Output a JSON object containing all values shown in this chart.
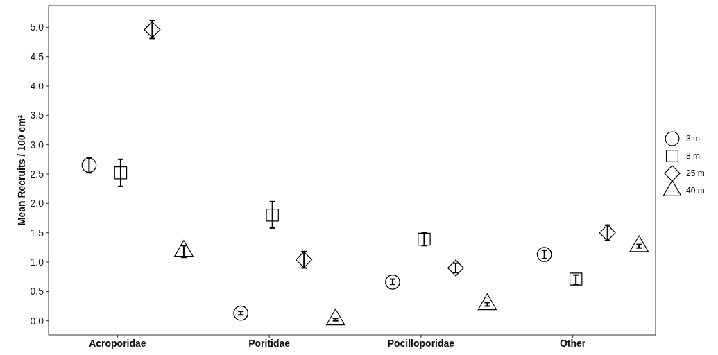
{
  "chart_data": {
    "type": "scatter",
    "ylabel": "Mean Recruits / 100 cm²",
    "categories": [
      "Acroporidae",
      "Poritidae",
      "Pocilloporidae",
      "Other"
    ],
    "ylim": [
      -0.24,
      5.37
    ],
    "yticks": [
      {
        "value": 0,
        "label": "0.0"
      },
      0.5,
      {
        "value": 1,
        "label": "1.0"
      },
      1.5,
      {
        "value": 2,
        "label": "2.0"
      },
      2.5,
      {
        "value": 3,
        "label": "3.0"
      },
      3.5,
      {
        "value": 4,
        "label": "4.0"
      },
      4.5,
      {
        "value": 5,
        "label": "5.0"
      }
    ],
    "grid": false,
    "legend": "right",
    "series": [
      {
        "name": "3 m",
        "color": "#000000",
        "marker": "circle",
        "values": [
          2.65,
          0.13,
          0.66,
          1.13
        ],
        "errors": [
          [
            2.52,
            2.78
          ],
          [
            0.1,
            0.16
          ],
          [
            0.62,
            0.71
          ],
          [
            1.06,
            1.2
          ]
        ]
      },
      {
        "name": "8 m",
        "color": "#000000",
        "marker": "square",
        "values": [
          2.52,
          1.8,
          1.39,
          0.71
        ],
        "errors": [
          [
            2.29,
            2.75
          ],
          [
            1.58,
            2.03
          ],
          [
            1.28,
            1.5
          ],
          [
            0.62,
            0.78
          ]
        ]
      },
      {
        "name": "25 m",
        "color": "#000000",
        "marker": "diamond",
        "values": [
          4.96,
          1.04,
          0.9,
          1.5
        ],
        "errors": [
          [
            4.81,
            5.11
          ],
          [
            0.9,
            1.18
          ],
          [
            0.82,
            0.98
          ],
          [
            1.37,
            1.63
          ]
        ]
      },
      {
        "name": "40 m",
        "color": "#000000",
        "marker": "triangle",
        "values": [
          1.19,
          0.02,
          0.28,
          1.27
        ],
        "errors": [
          [
            1.08,
            1.28
          ],
          [
            0,
            0.04
          ],
          [
            0.25,
            0.31
          ],
          [
            1.24,
            1.3
          ]
        ]
      }
    ]
  }
}
